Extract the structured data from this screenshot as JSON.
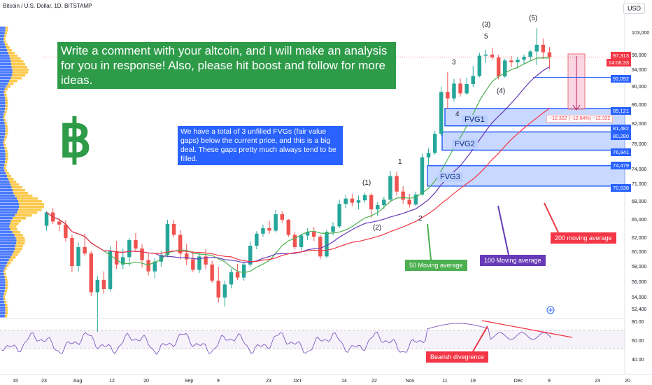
{
  "header": {
    "symbol": "Bitcoin / U.S. Dollar, 1D, BITSTAMP",
    "currency": "USD"
  },
  "banner": {
    "text": "Write a comment with your altcoin, and I will make an analysis for you in response! Also, please hit boost and follow for more ideas."
  },
  "fvg_note": {
    "text": "We have a total of 3 unfilled FVGs (fair value gaps) below the current price, and this is a big deal. These gaps pretty much always tend to be filled."
  },
  "labels": {
    "fvg1": "FVG1",
    "fvg2": "FVG2",
    "fvg3": "FVG3",
    "ma50": "50 Moving average",
    "ma100": "100 Moving average",
    "ma200": "200 moving average",
    "bearish": "Bearish divegrence",
    "measure": "−12,322 (−12.64%) −12,322"
  },
  "waves": [
    "(1)",
    "(2)",
    "(3)",
    "(4)",
    "(5)",
    "1",
    "2",
    "3",
    "4",
    "5"
  ],
  "price_tags": {
    "current": "97,313",
    "countdown": "14:06:33",
    "level": "92,092",
    "fvg1_top": "85,121",
    "fvg1_bot": "81,482",
    "fvg2_top": "80,280",
    "fvg2_bot": "76,941",
    "fvg3_top": "74,479",
    "fvg3_bot": "70,538"
  },
  "colors": {
    "up": "#26a69a",
    "down": "#ef5350",
    "ma50": "#4caf50",
    "ma100": "#673ab7",
    "ma200": "#f23645",
    "banner": "#2e9b49",
    "note": "#2962ff",
    "fvg": "#2962ff",
    "volume_profile": [
      "#2962ff",
      "#fbc02d"
    ]
  },
  "icons": {
    "bitcoin": "bitcoin-logo-icon",
    "add": "plus-circle-icon"
  },
  "chart_data": {
    "type": "candlestick",
    "y_ticks": [
      "103,000",
      "98,000",
      "94,000",
      "90,000",
      "86,000",
      "82,000",
      "78,000",
      "74,000",
      "71,000",
      "68,000",
      "65,000",
      "62,000",
      "60,000",
      "58,000",
      "56,000",
      "54,000",
      "52,400"
    ],
    "x_ticks": [
      "15",
      "23",
      "Aug",
      "12",
      "20",
      "Sep",
      "9",
      "23",
      "Oct",
      "14",
      "22",
      "Nov",
      "11",
      "19",
      "Dec",
      "9",
      "23",
      "20"
    ],
    "rsi_ticks": [
      "80.00",
      "60.00",
      "40.00"
    ],
    "ylim": [
      52400,
      104000
    ],
    "ohlc": [
      [
        63900,
        66300,
        63100,
        66100
      ],
      [
        66100,
        66800,
        64200,
        64600
      ],
      [
        64600,
        65100,
        63000,
        64100
      ],
      [
        64100,
        64800,
        61400,
        61900
      ],
      [
        61900,
        62400,
        57200,
        58000
      ],
      [
        58000,
        61200,
        57300,
        60600
      ],
      [
        60600,
        62600,
        59400,
        59700
      ],
      [
        59700,
        60000,
        54100,
        54600
      ],
      [
        54600,
        56700,
        49300,
        56200
      ],
      [
        56200,
        57300,
        54400,
        55000
      ],
      [
        55000,
        60700,
        54700,
        60000
      ],
      [
        60000,
        61500,
        57600,
        58200
      ],
      [
        58200,
        60400,
        57600,
        59200
      ],
      [
        59200,
        61900,
        58000,
        61600
      ],
      [
        61600,
        62700,
        59900,
        60400
      ],
      [
        60400,
        61000,
        57800,
        58800
      ],
      [
        58800,
        59700,
        56800,
        57300
      ],
      [
        57300,
        59100,
        56400,
        58600
      ],
      [
        58600,
        60100,
        57900,
        59500
      ],
      [
        59500,
        64900,
        59200,
        64200
      ],
      [
        64200,
        64900,
        62000,
        62400
      ],
      [
        62400,
        63200,
        58900,
        59700
      ],
      [
        59700,
        61100,
        58100,
        58900
      ],
      [
        58900,
        60000,
        57200,
        57500
      ],
      [
        57500,
        59800,
        57100,
        59300
      ],
      [
        59300,
        60300,
        57600,
        58200
      ],
      [
        58200,
        58700,
        55800,
        56100
      ],
      [
        56100,
        57900,
        53200,
        53900
      ],
      [
        53900,
        56100,
        52700,
        55600
      ],
      [
        55600,
        57700,
        55100,
        57200
      ],
      [
        57200,
        58300,
        56200,
        56500
      ],
      [
        56500,
        58600,
        56100,
        58200
      ],
      [
        58200,
        61400,
        57900,
        60800
      ],
      [
        60800,
        63000,
        60300,
        62600
      ],
      [
        62600,
        64100,
        62100,
        63500
      ],
      [
        63500,
        64700,
        62600,
        63100
      ],
      [
        63100,
        66500,
        62800,
        65800
      ],
      [
        65800,
        66300,
        64400,
        64900
      ],
      [
        64900,
        65000,
        62100,
        62400
      ],
      [
        62400,
        62800,
        60300,
        60600
      ],
      [
        60600,
        62600,
        60100,
        62300
      ],
      [
        62300,
        63500,
        61600,
        62900
      ],
      [
        62900,
        63700,
        61500,
        62100
      ],
      [
        62100,
        62400,
        58900,
        59300
      ],
      [
        59300,
        63200,
        59100,
        62900
      ],
      [
        62900,
        64500,
        62300,
        63800
      ],
      [
        63800,
        68200,
        63500,
        67500
      ],
      [
        67500,
        69000,
        66800,
        68400
      ],
      [
        68400,
        69200,
        67100,
        67700
      ],
      [
        67700,
        68900,
        66600,
        68100
      ],
      [
        68100,
        69400,
        67700,
        69000
      ],
      [
        69000,
        69300,
        65200,
        66600
      ],
      [
        66600,
        67800,
        65500,
        67300
      ],
      [
        67300,
        68700,
        66700,
        68200
      ],
      [
        68200,
        73600,
        67900,
        72500
      ],
      [
        72500,
        73400,
        68900,
        69600
      ],
      [
        69600,
        70500,
        67500,
        68200
      ],
      [
        68200,
        69200,
        66900,
        67400
      ],
      [
        67400,
        69600,
        67200,
        69100
      ],
      [
        69100,
        76400,
        68900,
        75800
      ],
      [
        75800,
        77200,
        74500,
        76500
      ],
      [
        76500,
        80500,
        76200,
        79900
      ],
      [
        79900,
        89900,
        79500,
        88700
      ],
      [
        88700,
        93400,
        85100,
        87300
      ],
      [
        87300,
        91700,
        86600,
        90600
      ],
      [
        90600,
        91800,
        87700,
        88400
      ],
      [
        88400,
        92000,
        88000,
        90500
      ],
      [
        90500,
        94900,
        89800,
        92400
      ],
      [
        92400,
        98400,
        92100,
        97700
      ],
      [
        97700,
        99100,
        95700,
        98000
      ],
      [
        98000,
        99500,
        96600,
        97200
      ],
      [
        97200,
        97900,
        91600,
        92300
      ],
      [
        92300,
        96900,
        92000,
        96400
      ],
      [
        96400,
        97600,
        94600,
        95900
      ],
      [
        95900,
        97400,
        94200,
        96600
      ],
      [
        96600,
        98000,
        95300,
        97400
      ],
      [
        97400,
        99000,
        96400,
        98700
      ],
      [
        98700,
        103900,
        95200,
        100200
      ],
      [
        100200,
        101600,
        96800,
        98500
      ],
      [
        98500,
        99700,
        94000,
        97313
      ]
    ]
  }
}
